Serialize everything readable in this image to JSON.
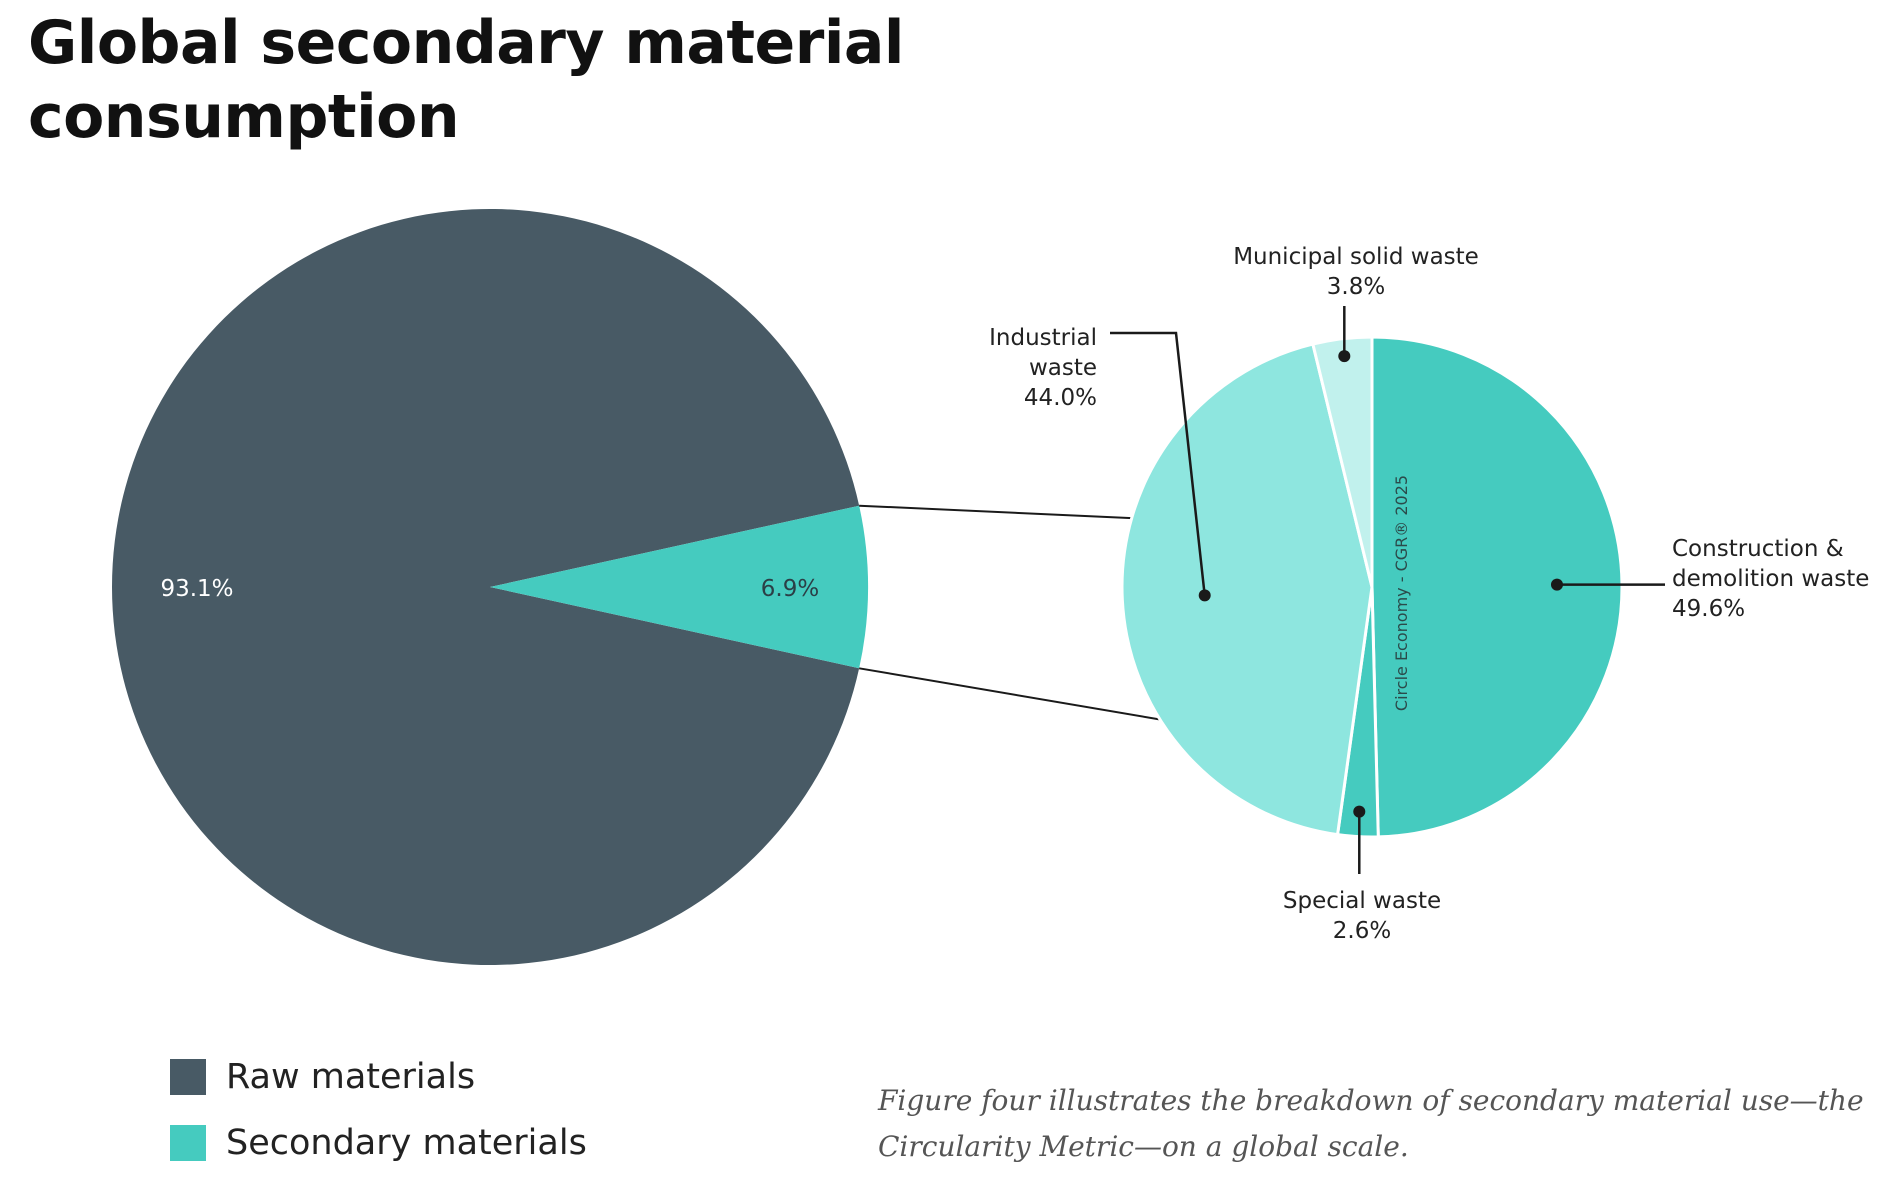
{
  "title": {
    "line1": "Global secondary material",
    "line2": "consumption"
  },
  "chart_data": [
    {
      "type": "pie",
      "slices": [
        {
          "label": "Raw materials",
          "value": 93.1,
          "display": "93.1%",
          "color": "#485a65"
        },
        {
          "label": "Secondary materials",
          "value": 6.9,
          "display": "6.9%",
          "color": "#45cbbf"
        }
      ]
    },
    {
      "type": "pie",
      "slices": [
        {
          "name_lines": [
            "Construction &",
            "demolition waste"
          ],
          "value": 49.6,
          "display": "49.6%",
          "color": "#45cbbf"
        },
        {
          "name_lines": [
            "Special waste"
          ],
          "value": 2.6,
          "display": "2.6%",
          "color": "#45cbbf"
        },
        {
          "name_lines": [
            "Industrial",
            "waste"
          ],
          "value": 44.0,
          "display": "44.0%",
          "color": "#8ee6df"
        },
        {
          "name_lines": [
            "Municipal solid waste"
          ],
          "value": 3.8,
          "display": "3.8%",
          "color": "#c1f1ed"
        }
      ],
      "watermark": "Circle Economy - CGR® 2025"
    }
  ],
  "legend": [
    {
      "label": "Raw materials",
      "color": "#485a65"
    },
    {
      "label": "Secondary materials",
      "color": "#45cbbf"
    }
  ],
  "caption": {
    "line1": "Figure four illustrates the breakdown of secondary material use—the",
    "line2": "Circularity Metric—on a global scale."
  }
}
